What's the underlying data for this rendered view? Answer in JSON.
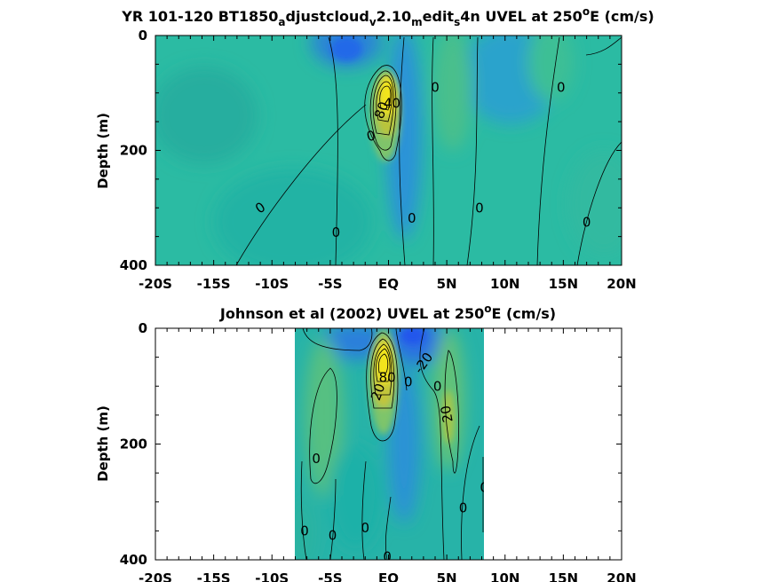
{
  "figure": {
    "panels": [
      {
        "title_main": "YR 101-120 BT1850",
        "title_parts": [
          {
            "t": "YR 101-120 BT1850",
            "s": 0
          },
          {
            "t": "a",
            "s": -1
          },
          {
            "t": "djustcloud",
            "s": 0
          },
          {
            "t": "v",
            "s": -1
          },
          {
            "t": "2.10",
            "s": 0
          },
          {
            "t": "m",
            "s": -1
          },
          {
            "t": "edit",
            "s": 0
          },
          {
            "t": "s",
            "s": -1
          },
          {
            "t": "4n UVEL at 250",
            "s": 0
          },
          {
            "t": "o",
            "s": 1
          },
          {
            "t": "E (cm/s)",
            "s": 0
          }
        ],
        "ylabel": "Depth (m)"
      },
      {
        "title_parts": [
          {
            "t": "Johnson et al (2002) UVEL at 250",
            "s": 0
          },
          {
            "t": "o",
            "s": 1
          },
          {
            "t": "E (cm/s)",
            "s": 0
          }
        ],
        "ylabel": "Depth (m)"
      }
    ],
    "x_tick_labels": [
      "-20S",
      "-15S",
      "-10S",
      "-5S",
      "EQ",
      "5N",
      "10N",
      "15N",
      "20N"
    ],
    "y_tick_labels": [
      "0",
      "200",
      "400"
    ],
    "colors": {
      "background_field": "#23b9a6",
      "negative": "#2f7ee6",
      "core_high": "#f3e41b",
      "core_mid": "#b9c43c",
      "contour": "#000000"
    }
  },
  "chart_data": [
    {
      "type": "heatmap",
      "title": "YR 101-120 BT1850_adjustcloud_v2.10_medit_s4n UVEL at 250°E (cm/s)",
      "xlabel": "",
      "ylabel": "Depth (m)",
      "xlim": [
        -20,
        20
      ],
      "ylim": [
        400,
        0
      ],
      "x_ticks": [
        -20,
        -15,
        -10,
        -5,
        0,
        5,
        10,
        15,
        20
      ],
      "y_ticks": [
        0,
        200,
        400
      ],
      "data_extent_x": [
        -20,
        20
      ],
      "features": [
        {
          "name": "Equatorial Undercurrent core",
          "lat": 0,
          "depth": 100,
          "max_value": 100
        },
        {
          "name": "South Equatorial Current (surface)",
          "lat": -3,
          "depth": 30,
          "value": -20
        },
        {
          "name": "North Equatorial Countercurrent",
          "lat": 5,
          "depth": 50,
          "value": 20
        }
      ],
      "contour_labels": [
        {
          "text": "0",
          "lat": -11,
          "depth": 300,
          "angle": -35
        },
        {
          "text": "0",
          "lat": -4.5,
          "depth": 343,
          "angle": 0
        },
        {
          "text": "0",
          "lat": -1.5,
          "depth": 175,
          "angle": -15
        },
        {
          "text": "80",
          "lat": -0.6,
          "depth": 130,
          "angle": -70
        },
        {
          "text": "40",
          "lat": 0.3,
          "depth": 118,
          "angle": 0
        },
        {
          "text": "0",
          "lat": 2,
          "depth": 318,
          "angle": 0
        },
        {
          "text": "0",
          "lat": 4,
          "depth": 90,
          "angle": 0
        },
        {
          "text": "0",
          "lat": 7.8,
          "depth": 300,
          "angle": 0
        },
        {
          "text": "0",
          "lat": 14.8,
          "depth": 90,
          "angle": 0
        },
        {
          "text": "0",
          "lat": 17,
          "depth": 325,
          "angle": 0
        }
      ]
    },
    {
      "type": "heatmap",
      "title": "Johnson et al (2002) UVEL at 250°E (cm/s)",
      "xlabel": "",
      "ylabel": "Depth (m)",
      "xlim": [
        -20,
        20
      ],
      "ylim": [
        400,
        0
      ],
      "x_ticks": [
        -20,
        -15,
        -10,
        -5,
        0,
        5,
        10,
        15,
        20
      ],
      "y_ticks": [
        0,
        200,
        400
      ],
      "data_extent_x": [
        -8,
        8.3
      ],
      "features": [
        {
          "name": "Equatorial Undercurrent core",
          "lat": 0,
          "depth": 70,
          "max_value": 100
        },
        {
          "name": "South Equatorial Current (surface)",
          "lat": 1.8,
          "depth": 10,
          "value": -20
        },
        {
          "name": "North Equatorial Countercurrent",
          "lat": 5,
          "depth": 50,
          "value": 20
        }
      ],
      "contour_labels": [
        {
          "text": "-20",
          "lat": 3,
          "depth": 60,
          "angle": -55
        },
        {
          "text": "0",
          "lat": -6.2,
          "depth": 225,
          "angle": 0
        },
        {
          "text": "0",
          "lat": -7.2,
          "depth": 350,
          "angle": 0
        },
        {
          "text": "0",
          "lat": -4.8,
          "depth": 358,
          "angle": 0
        },
        {
          "text": "0",
          "lat": -2,
          "depth": 345,
          "angle": 0
        },
        {
          "text": "0",
          "lat": -0.1,
          "depth": 395,
          "angle": 0
        },
        {
          "text": "20",
          "lat": -0.9,
          "depth": 110,
          "angle": -70
        },
        {
          "text": "80",
          "lat": -0.1,
          "depth": 85,
          "angle": 0
        },
        {
          "text": "0",
          "lat": 1.7,
          "depth": 93,
          "angle": 0
        },
        {
          "text": "0",
          "lat": 4.2,
          "depth": 100,
          "angle": 0
        },
        {
          "text": "20",
          "lat": 5,
          "depth": 148,
          "angle": -100
        },
        {
          "text": "0",
          "lat": 6.4,
          "depth": 310,
          "angle": 0
        },
        {
          "text": "0",
          "lat": 8.2,
          "depth": 275,
          "angle": 0
        }
      ]
    }
  ]
}
